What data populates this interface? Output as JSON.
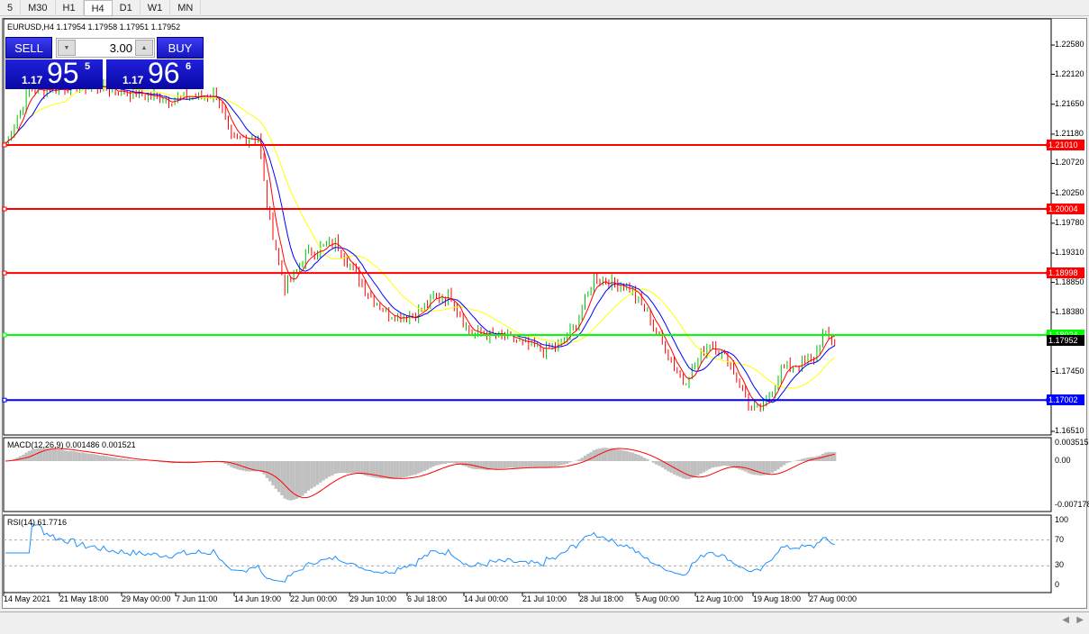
{
  "toolbar": {
    "timeframes": [
      "5",
      "M30",
      "H1",
      "H4",
      "D1",
      "W1",
      "MN"
    ],
    "active": "H4"
  },
  "chart": {
    "info": "EURUSD,H4  1.17954 1.17958 1.17951 1.17952",
    "trade_panel": {
      "sell_label": "SELL",
      "buy_label": "BUY",
      "lots": "3.00",
      "sell_big": "1.17",
      "sell_main": "95",
      "sell_sup": "5",
      "buy_big": "1.17",
      "buy_main": "96",
      "buy_sup": "6"
    },
    "price_axis": [
      "1.22580",
      "1.22120",
      "1.21650",
      "1.21180",
      "1.20720",
      "1.20250",
      "1.19780",
      "1.19310",
      "1.18850",
      "1.18380",
      "1.17450",
      "1.16510"
    ],
    "levels": [
      {
        "price": "1.21010",
        "color": "#ff0000"
      },
      {
        "price": "1.20004",
        "color": "#ff0000"
      },
      {
        "price": "1.18998",
        "color": "#ff0000"
      },
      {
        "price": "1.18024",
        "color": "#00ff00"
      },
      {
        "price": "1.17002",
        "color": "#0000ff"
      }
    ],
    "current_price": "1.17952",
    "time_axis": [
      "14 May 2021",
      "21 May 18:00",
      "29 May 00:00",
      "7 Jun 11:00",
      "14 Jun 19:00",
      "22 Jun 00:00",
      "29 Jun 10:00",
      "6 Jul 18:00",
      "14 Jul 00:00",
      "21 Jul 10:00",
      "28 Jul 18:00",
      "5 Aug 00:00",
      "12 Aug 10:00",
      "19 Aug 18:00",
      "27 Aug 00:00"
    ],
    "macd": {
      "label": "MACD(12,26,9) 0.001486 0.001521",
      "axis": [
        "0.003515",
        "0.00",
        "-0.007178"
      ]
    },
    "rsi": {
      "label": "RSI(14) 61.7716",
      "axis": [
        "100",
        "70",
        "30",
        "0"
      ]
    }
  },
  "colors": {
    "bull": "#00c000",
    "bear": "#ff0000",
    "ma_fast": "#ff0000",
    "ma_mid": "#0000ff",
    "ma_slow": "#ffff00",
    "rsi": "#1e90ff",
    "macd_hist": "#c0c0c0"
  },
  "chart_data": {
    "type": "candlestick",
    "symbol": "EURUSD",
    "timeframe": "H4",
    "close_keyframes": [
      [
        0,
        1.2102
      ],
      [
        8,
        1.2187
      ],
      [
        29,
        1.2194
      ],
      [
        55,
        1.2173
      ],
      [
        71,
        1.218
      ],
      [
        76,
        1.2109
      ],
      [
        85,
        1.2116
      ],
      [
        88,
        1.2003
      ],
      [
        94,
        1.1876
      ],
      [
        102,
        1.1932
      ],
      [
        111,
        1.1947
      ],
      [
        123,
        1.1862
      ],
      [
        129,
        1.1834
      ],
      [
        138,
        1.1834
      ],
      [
        144,
        1.1862
      ],
      [
        150,
        1.1862
      ],
      [
        156,
        1.1806
      ],
      [
        168,
        1.1799
      ],
      [
        180,
        1.1778
      ],
      [
        186,
        1.1785
      ],
      [
        192,
        1.182
      ],
      [
        198,
        1.1891
      ],
      [
        210,
        1.1877
      ],
      [
        216,
        1.1834
      ],
      [
        228,
        1.1728
      ],
      [
        237,
        1.1792
      ],
      [
        243,
        1.1764
      ],
      [
        251,
        1.1686
      ],
      [
        255,
        1.1686
      ],
      [
        261,
        1.1749
      ],
      [
        272,
        1.1764
      ],
      [
        275,
        1.1803
      ],
      [
        279,
        1.1795
      ]
    ]
  }
}
